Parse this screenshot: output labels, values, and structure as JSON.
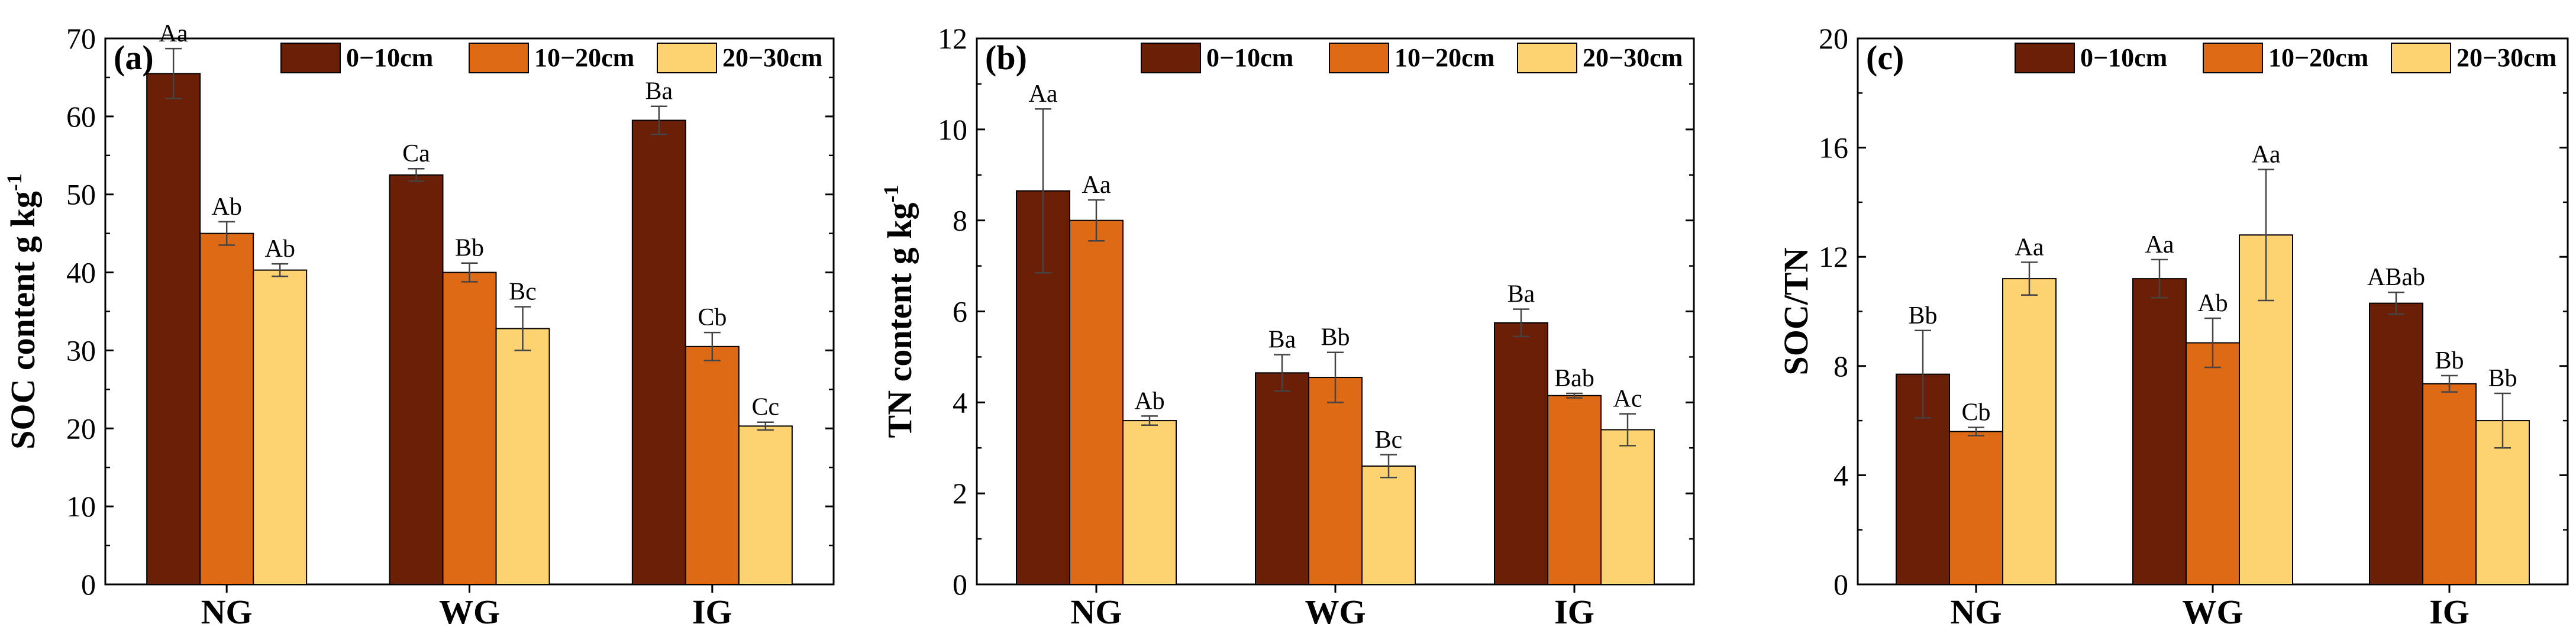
{
  "chart_data": [
    {
      "type": "bar",
      "panel_label": "(a)",
      "title": "",
      "xlabel": "",
      "ylabel": "SOC content g kg",
      "ylabel_superscript": "-1",
      "ylim": [
        0,
        70
      ],
      "yticks": [
        0,
        10,
        20,
        30,
        40,
        50,
        60,
        70
      ],
      "ytick_labels": [
        "0",
        "10",
        "20",
        "30",
        "40",
        "50",
        "60",
        "70"
      ],
      "categories": [
        "NG",
        "WG",
        "IG"
      ],
      "series": [
        {
          "name": "0−10cm",
          "color": "#6b1f06",
          "values": [
            65.5,
            52.5,
            59.5
          ],
          "errors": [
            3.2,
            0.8,
            1.8
          ],
          "letters": [
            "Aa",
            "Ca",
            "Ba"
          ]
        },
        {
          "name": "10−20cm",
          "color": "#de6a16",
          "values": [
            45.0,
            40.0,
            30.5
          ],
          "errors": [
            1.5,
            1.2,
            1.8
          ],
          "letters": [
            "Ab",
            "Bb",
            "Cb"
          ]
        },
        {
          "name": "20−30cm",
          "color": "#fdd271",
          "values": [
            40.3,
            32.8,
            20.3
          ],
          "errors": [
            0.8,
            2.8,
            0.5
          ],
          "letters": [
            "Ab",
            "Bc",
            "Cc"
          ]
        }
      ],
      "legend": "top-right"
    },
    {
      "type": "bar",
      "panel_label": "(b)",
      "title": "",
      "xlabel": "",
      "ylabel": "TN content g kg",
      "ylabel_superscript": "-1",
      "ylim": [
        0,
        12
      ],
      "yticks": [
        0,
        2,
        4,
        6,
        8,
        10,
        12
      ],
      "ytick_labels": [
        "0",
        "2",
        "4",
        "6",
        "8",
        "10",
        "12"
      ],
      "categories": [
        "NG",
        "WG",
        "IG"
      ],
      "series": [
        {
          "name": "0−10cm",
          "color": "#6b1f06",
          "values": [
            8.65,
            4.65,
            5.75
          ],
          "errors": [
            1.8,
            0.4,
            0.3
          ],
          "letters": [
            "Aa",
            "Ba",
            "Ba"
          ]
        },
        {
          "name": "10−20cm",
          "color": "#de6a16",
          "values": [
            8.0,
            4.55,
            4.15
          ],
          "errors": [
            0.45,
            0.55,
            0.05
          ],
          "letters": [
            "Aa",
            "Bb",
            "Bab"
          ]
        },
        {
          "name": "20−30cm",
          "color": "#fdd271",
          "values": [
            3.6,
            2.6,
            3.4
          ],
          "errors": [
            0.1,
            0.25,
            0.35
          ],
          "letters": [
            "Ab",
            "Bc",
            "Ac"
          ]
        }
      ],
      "legend": "top-right"
    },
    {
      "type": "bar",
      "panel_label": "(c)",
      "title": "",
      "xlabel": "",
      "ylabel": "SOC/TN",
      "ylabel_superscript": "",
      "ylim": [
        0,
        20
      ],
      "yticks": [
        0,
        4,
        8,
        12,
        16,
        20
      ],
      "ytick_labels": [
        "0",
        "4",
        "8",
        "12",
        "16",
        "20"
      ],
      "categories": [
        "NG",
        "WG",
        "IG"
      ],
      "series": [
        {
          "name": "0−10cm",
          "color": "#6b1f06",
          "values": [
            7.7,
            11.2,
            10.3
          ],
          "errors": [
            1.6,
            0.7,
            0.4
          ],
          "letters": [
            "Bb",
            "Aa",
            "ABab"
          ]
        },
        {
          "name": "10−20cm",
          "color": "#de6a16",
          "values": [
            5.6,
            8.85,
            7.35
          ],
          "errors": [
            0.15,
            0.9,
            0.3
          ],
          "letters": [
            "Cb",
            "Ab",
            "Bb"
          ]
        },
        {
          "name": "20−30cm",
          "color": "#fdd271",
          "values": [
            11.2,
            12.8,
            6.0
          ],
          "errors": [
            0.6,
            2.4,
            1.0
          ],
          "letters": [
            "Aa",
            "Aa",
            "Bb"
          ]
        }
      ],
      "legend": "top-right"
    }
  ]
}
